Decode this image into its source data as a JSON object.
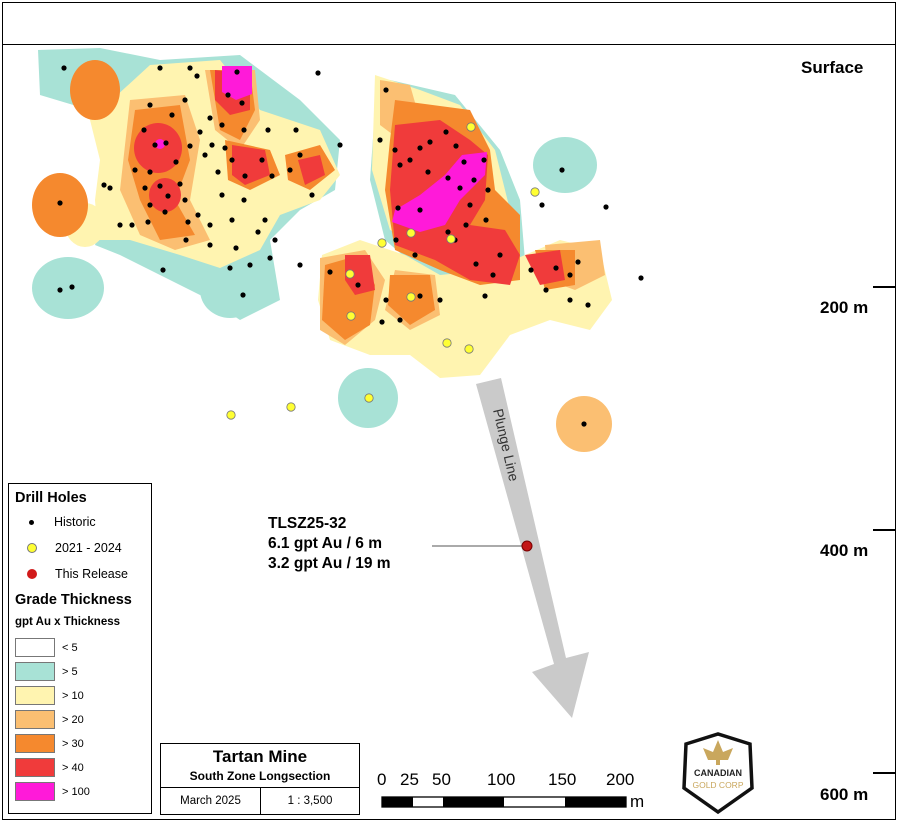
{
  "depth_labels": {
    "surface": "Surface",
    "d200": "200 m",
    "d400": "400 m",
    "d600": "600 m"
  },
  "plunge_label": "Plunge Line",
  "callout": {
    "hole": "TLSZ25-32",
    "line1": "6.1 gpt Au / 6 m",
    "line2": "3.2 gpt Au / 19 m"
  },
  "legend": {
    "drill_title": "Drill Holes",
    "drill_items": [
      {
        "label": "Historic",
        "color": "#000000"
      },
      {
        "label": "2021 - 2024",
        "color": "#ffff33"
      },
      {
        "label": "This Release",
        "color": "#d11a1a"
      }
    ],
    "grade_title": "Grade Thickness",
    "grade_sub": "gpt Au x Thickness",
    "grade_items": [
      {
        "label": "< 5",
        "color": "#ffffff"
      },
      {
        "label": "> 5",
        "color": "#a8e2d6"
      },
      {
        "label": "> 10",
        "color": "#fff4b0"
      },
      {
        "label": "> 20",
        "color": "#fbbf72"
      },
      {
        "label": "> 30",
        "color": "#f5892e"
      },
      {
        "label": "> 40",
        "color": "#f03b3b"
      },
      {
        "label": "> 100",
        "color": "#ff1ad9"
      }
    ]
  },
  "title_block": {
    "title": "Tartan Mine",
    "subtitle": "South Zone Longsection",
    "date": "March 2025",
    "scale": "1 : 3,500"
  },
  "scale_bar": {
    "labels": [
      "0",
      "25",
      "50",
      "100",
      "150",
      "200"
    ],
    "unit": "m"
  },
  "logo": {
    "line1": "CANADIAN",
    "line2": "GOLD CORP"
  }
}
